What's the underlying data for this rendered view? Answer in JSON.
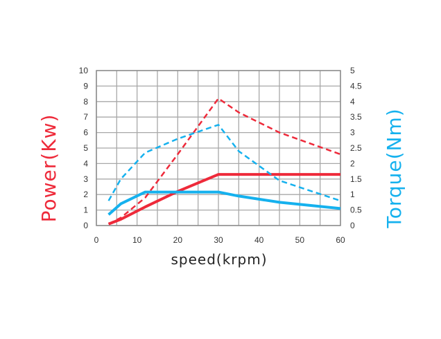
{
  "chart_data": {
    "type": "line",
    "xlabel": "speed(krpm)",
    "ylabel_left": "Power(Kw)",
    "ylabel_right": "Torque(Nm)",
    "xlim": [
      0,
      60
    ],
    "ylim_left": [
      0,
      10
    ],
    "ylim_right": [
      0,
      5
    ],
    "x_ticks": [
      "0",
      "10",
      "20",
      "30",
      "40",
      "50",
      "60"
    ],
    "y_left_ticks": [
      "0",
      "1",
      "2",
      "3",
      "4",
      "5",
      "6",
      "7",
      "8",
      "9",
      "10"
    ],
    "y_right_ticks": [
      "0",
      "0.5",
      "1",
      "1.5",
      "2",
      "2.5",
      "3",
      "3.5",
      "4",
      "4.5",
      "5"
    ],
    "grid": true,
    "colors": {
      "power": "#ee2a3a",
      "torque": "#15b1ee"
    },
    "series": [
      {
        "axis": "left",
        "color": "#ee2a3a",
        "dashed": false,
        "width": 4,
        "x": [
          3,
          6,
          12,
          20,
          30,
          35,
          45,
          60
        ],
        "y": [
          0.1,
          0.4,
          1.2,
          2.2,
          3.3,
          3.3,
          3.3,
          3.3
        ]
      },
      {
        "axis": "left",
        "color": "#ee2a3a",
        "dashed": true,
        "width": 2.5,
        "x": [
          3,
          6,
          12,
          20,
          30,
          35,
          45,
          60
        ],
        "y": [
          0.1,
          0.5,
          1.8,
          4.6,
          8.2,
          7.3,
          6.0,
          4.6
        ]
      },
      {
        "axis": "right",
        "color": "#15b1ee",
        "dashed": false,
        "width": 4,
        "x": [
          3,
          6,
          12,
          20,
          30,
          35,
          45,
          60
        ],
        "y": [
          0.35,
          0.7,
          1.08,
          1.08,
          1.08,
          0.95,
          0.75,
          0.55
        ]
      },
      {
        "axis": "right",
        "color": "#15b1ee",
        "dashed": true,
        "width": 2.5,
        "x": [
          3,
          6,
          12,
          20,
          30,
          35,
          45,
          60
        ],
        "y": [
          0.8,
          1.5,
          2.35,
          2.8,
          3.25,
          2.4,
          1.45,
          0.8
        ]
      }
    ]
  }
}
